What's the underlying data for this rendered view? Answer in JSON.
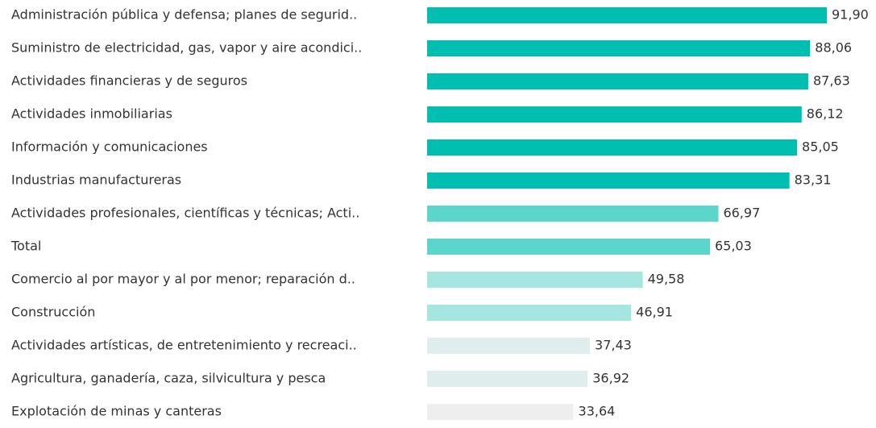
{
  "chart_data": {
    "type": "barh",
    "categories": [
      "Administración pública y defensa; planes de segurid..",
      "Suministro de electricidad, gas, vapor y aire acondici..",
      "Actividades financieras y de seguros",
      "Actividades inmobiliarias",
      "Información y comunicaciones",
      "Industrias manufactureras",
      "Actividades profesionales, científicas y técnicas; Acti..",
      "Total",
      "Comercio al por mayor y al por menor; reparación d..",
      "Construcción",
      "Actividades artísticas, de entretenimiento y recreaci..",
      "Agricultura, ganadería, caza, silvicultura y pesca",
      "Explotación de minas y canteras"
    ],
    "values": [
      91.9,
      88.06,
      87.63,
      86.12,
      85.05,
      83.31,
      66.97,
      65.03,
      49.58,
      46.91,
      37.43,
      36.92,
      33.64
    ],
    "value_labels": [
      "91,90",
      "88,06",
      "87,63",
      "86,12",
      "85,05",
      "83,31",
      "66,97",
      "65,03",
      "49,58",
      "46,91",
      "37,43",
      "36,92",
      "33,64"
    ],
    "colors": [
      "#00bfb0",
      "#00bfb0",
      "#00bfb0",
      "#00bfb0",
      "#00bfb0",
      "#00bfb0",
      "#5cd5cb",
      "#5cd5cb",
      "#a6e6e0",
      "#a6e6e0",
      "#e0eded",
      "#e0eded",
      "#eeeeee"
    ]
  }
}
